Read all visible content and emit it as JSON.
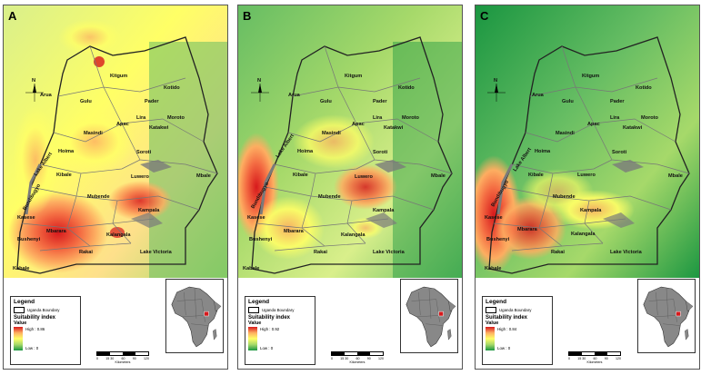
{
  "panels": [
    {
      "id": "a",
      "letter": "A",
      "legend": {
        "title": "Legend",
        "boundary_label": "Uganda Boundary",
        "index_title": "Suitability index",
        "value_label": "Value",
        "high_label": "High : 0.86",
        "low_label": "Low : 0"
      },
      "hotspots": [
        "#d7191c",
        "#f46d43",
        "#fdae61",
        "#ffff66"
      ],
      "background": "#a6d96a"
    },
    {
      "id": "b",
      "letter": "B",
      "legend": {
        "title": "Legend",
        "boundary_label": "Uganda Boundary",
        "index_title": "Suitability index",
        "value_label": "Value",
        "high_label": "High : 0.92",
        "low_label": "Low : 0"
      },
      "hotspots": [
        "#d7191c",
        "#f46d43",
        "#fdae61",
        "#ffff66"
      ],
      "background": "#66bd63"
    },
    {
      "id": "c",
      "letter": "C",
      "legend": {
        "title": "Legend",
        "boundary_label": "Uganda Boundary",
        "index_title": "Suitability index",
        "value_label": "Value",
        "high_label": "High : 0.84",
        "low_label": "Low : 0"
      },
      "hotspots": [
        "#d7191c",
        "#f46d43",
        "#fdae61",
        "#ffff66"
      ],
      "background": "#1a9641"
    }
  ],
  "place_labels": {
    "kitgum": "Kitgum",
    "kotido": "Kotido",
    "arua": "Arua",
    "gulu": "Gulu",
    "pader": "Pader",
    "moroto": "Moroto",
    "lira": "Lira",
    "apac": "Apac",
    "katakwi": "Katakwi",
    "masindi": "Masindi",
    "hoima": "Hoima",
    "soroti": "Soroti",
    "kibale": "Kibale",
    "luwero": "Luwero",
    "mbale": "Mbale",
    "mubende": "Mubende",
    "kampala": "Kampala",
    "kasese": "Kasese",
    "bushenyi": "Bushenyi",
    "mbarara": "Mbarara",
    "kalangala": "Kalangala",
    "rakai": "Rakai",
    "lake_victoria": "Lake Victoria",
    "kabale": "Kabale",
    "lake_albert": "Lake Albert",
    "bundibugyo": "Bundibugyo"
  },
  "north_arrow": {
    "label": "N"
  },
  "scale_bar": {
    "ticks": [
      "0",
      "15 30",
      "60",
      "90",
      "120"
    ],
    "unit": "Kilometers"
  },
  "colors": {
    "boundary": "#222222",
    "district_lines": "#777777",
    "lake": "#7a7a7a",
    "africa_fill": "#888888",
    "uganda_highlight": "#d7191c"
  }
}
